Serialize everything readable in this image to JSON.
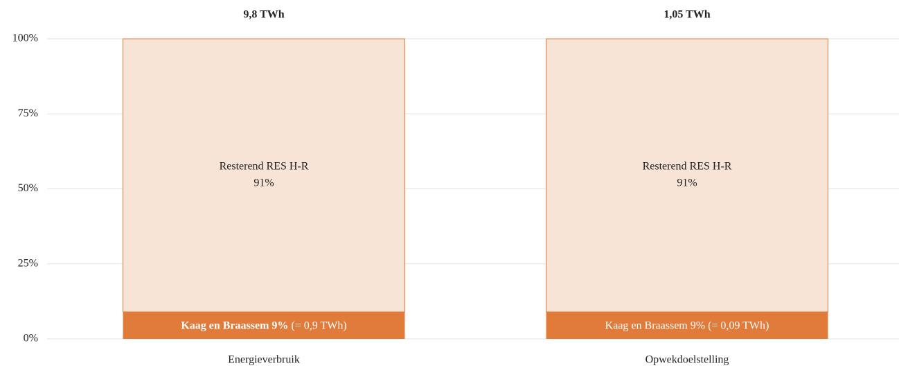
{
  "chart_data": {
    "type": "stacked_bar_100",
    "categories": [
      "Energieverbruik",
      "Opwekdoelstelling"
    ],
    "totals": [
      "9,8 TWh",
      "1,05 TWh"
    ],
    "series": [
      {
        "name": "Kaag en Braassem",
        "color": "#e07b39",
        "values": [
          9,
          9
        ],
        "value_labels": [
          "9%",
          "9%"
        ],
        "extra_labels": [
          "(= 0,9 TWh)",
          "(= 0,09 TWh)"
        ],
        "label_bold": [
          true,
          false
        ]
      },
      {
        "name": "Resterend RES H-R",
        "color": "#f8e4d6",
        "edge_color": "#e07b39",
        "values": [
          91,
          91
        ],
        "value_labels": [
          "91%",
          "91%"
        ]
      }
    ],
    "ylim": [
      0,
      100
    ],
    "yticks": [
      {
        "value": 0,
        "label": "0%"
      },
      {
        "value": 25,
        "label": "25%"
      },
      {
        "value": 50,
        "label": "50%"
      },
      {
        "value": 75,
        "label": "75%"
      },
      {
        "value": 100,
        "label": "100%"
      }
    ],
    "grid": true
  }
}
